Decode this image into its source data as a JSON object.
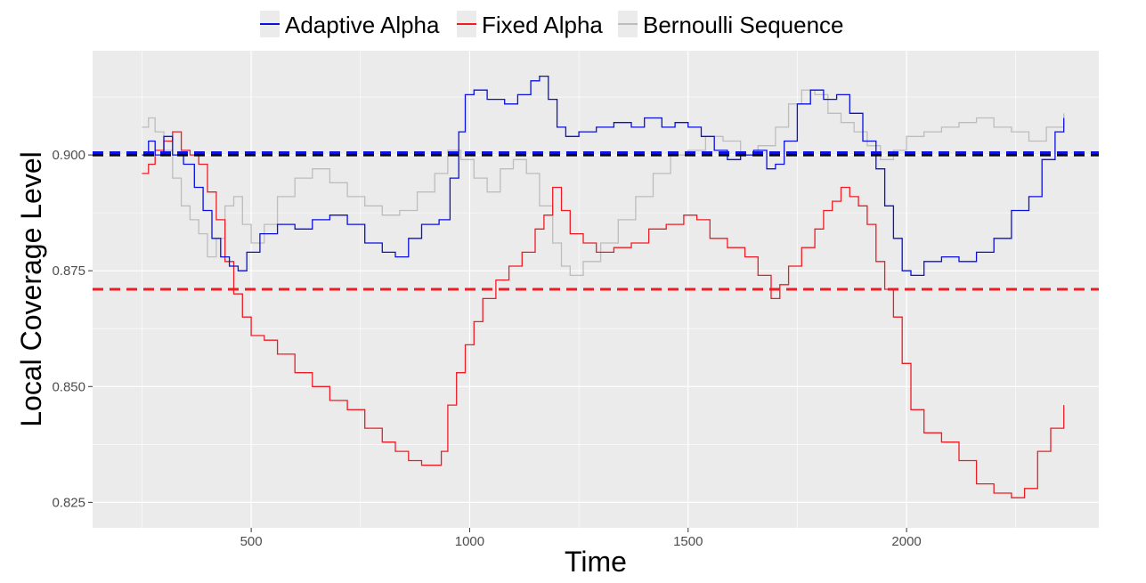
{
  "chart_data": {
    "type": "line",
    "title": "",
    "xlabel": "Time",
    "ylabel": "Local Coverage Level",
    "xlim": [
      137,
      2440
    ],
    "ylim": [
      0.8195,
      0.9225
    ],
    "x_ticks": [
      500,
      1000,
      1500,
      2000
    ],
    "x_tick_labels": [
      "500",
      "1000",
      "1500",
      "2000"
    ],
    "y_ticks": [
      0.825,
      0.85,
      0.875,
      0.9
    ],
    "y_tick_labels": [
      "0.825",
      "0.850",
      "0.875",
      "0.900"
    ],
    "grid": true,
    "legend_position": "top",
    "colors": {
      "panel": "#ebebeb",
      "grid": "#ffffff",
      "adaptive": "#0a10e0",
      "fixed": "#ee1c25",
      "bernoulli": "#bdbdbd",
      "target": "#000000"
    },
    "series": [
      {
        "name": "Adaptive Alpha",
        "key": "adaptive",
        "x": [
          250,
          265,
          280,
          300,
          320,
          345,
          370,
          390,
          410,
          430,
          450,
          470,
          490,
          520,
          560,
          600,
          640,
          680,
          720,
          760,
          800,
          830,
          860,
          890,
          930,
          955,
          975,
          990,
          1010,
          1040,
          1080,
          1110,
          1140,
          1160,
          1180,
          1200,
          1220,
          1250,
          1290,
          1330,
          1370,
          1400,
          1440,
          1470,
          1500,
          1530,
          1560,
          1590,
          1620,
          1650,
          1680,
          1700,
          1720,
          1750,
          1780,
          1810,
          1840,
          1870,
          1900,
          1930,
          1950,
          1970,
          1990,
          2010,
          2040,
          2080,
          2120,
          2160,
          2200,
          2240,
          2280,
          2310,
          2340,
          2360
        ],
        "y": [
          0.9,
          0.903,
          0.9,
          0.904,
          0.9,
          0.898,
          0.893,
          0.888,
          0.882,
          0.878,
          0.876,
          0.875,
          0.879,
          0.883,
          0.885,
          0.884,
          0.886,
          0.887,
          0.885,
          0.881,
          0.879,
          0.878,
          0.882,
          0.885,
          0.886,
          0.895,
          0.905,
          0.913,
          0.914,
          0.912,
          0.911,
          0.913,
          0.916,
          0.917,
          0.912,
          0.906,
          0.904,
          0.905,
          0.906,
          0.907,
          0.906,
          0.908,
          0.906,
          0.907,
          0.906,
          0.904,
          0.901,
          0.899,
          0.9,
          0.901,
          0.897,
          0.898,
          0.903,
          0.911,
          0.914,
          0.912,
          0.913,
          0.909,
          0.903,
          0.897,
          0.889,
          0.882,
          0.875,
          0.874,
          0.877,
          0.878,
          0.877,
          0.879,
          0.882,
          0.888,
          0.891,
          0.899,
          0.905,
          0.908
        ]
      },
      {
        "name": "Fixed Alpha",
        "key": "fixed",
        "x": [
          250,
          265,
          280,
          300,
          320,
          340,
          360,
          380,
          400,
          420,
          440,
          460,
          480,
          500,
          530,
          560,
          600,
          640,
          680,
          720,
          760,
          800,
          830,
          860,
          890,
          920,
          935,
          950,
          970,
          990,
          1010,
          1030,
          1060,
          1090,
          1120,
          1150,
          1170,
          1190,
          1210,
          1230,
          1260,
          1290,
          1330,
          1370,
          1410,
          1450,
          1490,
          1520,
          1550,
          1590,
          1630,
          1660,
          1690,
          1710,
          1730,
          1760,
          1790,
          1810,
          1830,
          1850,
          1870,
          1890,
          1910,
          1930,
          1950,
          1970,
          1990,
          2010,
          2040,
          2080,
          2120,
          2160,
          2200,
          2240,
          2270,
          2300,
          2330,
          2360
        ],
        "y": [
          0.896,
          0.898,
          0.901,
          0.903,
          0.905,
          0.901,
          0.9,
          0.898,
          0.892,
          0.886,
          0.877,
          0.87,
          0.865,
          0.861,
          0.86,
          0.857,
          0.853,
          0.85,
          0.847,
          0.845,
          0.841,
          0.838,
          0.836,
          0.834,
          0.833,
          0.833,
          0.836,
          0.846,
          0.853,
          0.859,
          0.864,
          0.869,
          0.873,
          0.876,
          0.879,
          0.884,
          0.887,
          0.893,
          0.888,
          0.883,
          0.881,
          0.879,
          0.88,
          0.881,
          0.884,
          0.885,
          0.887,
          0.886,
          0.882,
          0.88,
          0.878,
          0.874,
          0.869,
          0.872,
          0.876,
          0.88,
          0.884,
          0.888,
          0.89,
          0.893,
          0.891,
          0.889,
          0.885,
          0.877,
          0.871,
          0.865,
          0.855,
          0.845,
          0.84,
          0.838,
          0.834,
          0.829,
          0.827,
          0.826,
          0.828,
          0.836,
          0.841,
          0.846
        ]
      },
      {
        "name": "Bernoulli Sequence",
        "key": "bernoulli",
        "x": [
          250,
          265,
          280,
          300,
          320,
          340,
          360,
          380,
          400,
          420,
          440,
          460,
          480,
          500,
          530,
          560,
          600,
          640,
          680,
          720,
          760,
          800,
          840,
          880,
          920,
          950,
          980,
          1010,
          1040,
          1070,
          1100,
          1130,
          1160,
          1190,
          1210,
          1230,
          1260,
          1300,
          1340,
          1380,
          1420,
          1460,
          1500,
          1540,
          1580,
          1620,
          1660,
          1700,
          1730,
          1760,
          1790,
          1820,
          1850,
          1880,
          1910,
          1940,
          1970,
          2000,
          2040,
          2080,
          2120,
          2160,
          2200,
          2240,
          2280,
          2320,
          2360
        ],
        "y": [
          0.906,
          0.908,
          0.905,
          0.901,
          0.895,
          0.889,
          0.886,
          0.883,
          0.878,
          0.882,
          0.889,
          0.891,
          0.885,
          0.881,
          0.885,
          0.891,
          0.895,
          0.897,
          0.894,
          0.891,
          0.889,
          0.887,
          0.888,
          0.892,
          0.896,
          0.901,
          0.899,
          0.895,
          0.892,
          0.897,
          0.899,
          0.896,
          0.889,
          0.881,
          0.876,
          0.874,
          0.877,
          0.881,
          0.886,
          0.891,
          0.896,
          0.9,
          0.901,
          0.904,
          0.903,
          0.9,
          0.902,
          0.906,
          0.911,
          0.914,
          0.913,
          0.909,
          0.907,
          0.905,
          0.902,
          0.899,
          0.901,
          0.904,
          0.905,
          0.906,
          0.907,
          0.908,
          0.906,
          0.905,
          0.903,
          0.906,
          0.909
        ]
      }
    ],
    "reference_lines": [
      {
        "key": "target",
        "y": 0.9,
        "color": "#000000"
      },
      {
        "key": "adaptive_mean",
        "y": 0.9005,
        "color": "#0a10e0"
      },
      {
        "key": "fixed_mean",
        "y": 0.871,
        "color": "#ee1c25"
      }
    ]
  }
}
